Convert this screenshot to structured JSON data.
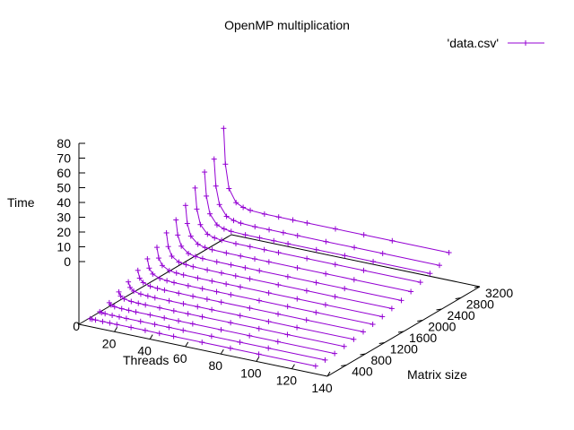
{
  "chart_data": {
    "type": "line",
    "title": "OpenMP multiplication",
    "xlabel": "Threads",
    "ylabel": "Matrix size",
    "zlabel": "Time",
    "xlim": [
      0,
      140
    ],
    "ylim": [
      0,
      3200
    ],
    "zlim": [
      0,
      80
    ],
    "x_ticks": [
      "20",
      "40",
      "60",
      "80",
      "100",
      "120",
      "140"
    ],
    "y_ticks": [
      "400",
      "800",
      "1200",
      "1600",
      "2000",
      "2400",
      "2800",
      "3200"
    ],
    "z_ticks": [
      "0",
      "10",
      "20",
      "30",
      "40",
      "50",
      "60",
      "70",
      "80"
    ],
    "origin_label": "0",
    "legend": {
      "label": "'data.csv'",
      "position": "top-right"
    },
    "x": [
      1,
      2,
      4,
      8,
      12,
      16,
      24,
      32,
      40,
      48,
      64,
      80,
      96,
      128
    ],
    "series": [
      {
        "y": 200,
        "values": [
          0.2,
          0.15,
          0.12,
          0.1,
          0.1,
          0.1,
          0.1,
          0.1,
          0.1,
          0.1,
          0.1,
          0.1,
          0.1,
          0.1
        ]
      },
      {
        "y": 400,
        "values": [
          1.2,
          0.8,
          0.6,
          0.5,
          0.45,
          0.4,
          0.4,
          0.4,
          0.4,
          0.4,
          0.4,
          0.4,
          0.4,
          0.4
        ]
      },
      {
        "y": 600,
        "values": [
          3.5,
          2.2,
          1.5,
          1.2,
          1.1,
          1.0,
          1.0,
          1.0,
          1.0,
          1.0,
          1.0,
          1.0,
          1.0,
          1.0
        ]
      },
      {
        "y": 800,
        "values": [
          7.0,
          4.5,
          3.0,
          2.3,
          2.1,
          2.0,
          2.0,
          2.0,
          2.0,
          2.0,
          2.0,
          2.0,
          2.0,
          2.0
        ]
      },
      {
        "y": 1000,
        "values": [
          10.0,
          6.5,
          4.5,
          3.5,
          3.2,
          3.0,
          3.0,
          3.0,
          3.0,
          3.0,
          3.0,
          3.0,
          3.0,
          3.0
        ]
      },
      {
        "y": 1200,
        "values": [
          14.0,
          9.0,
          6.5,
          5.0,
          4.6,
          4.4,
          4.3,
          4.3,
          4.3,
          4.3,
          4.3,
          4.3,
          4.3,
          4.3
        ]
      },
      {
        "y": 1400,
        "values": [
          18.0,
          12.0,
          8.5,
          6.5,
          6.0,
          5.7,
          5.6,
          5.6,
          5.6,
          5.6,
          5.6,
          5.6,
          5.6,
          5.6
        ]
      },
      {
        "y": 1600,
        "values": [
          22.0,
          15.0,
          10.5,
          8.0,
          7.4,
          7.1,
          7.0,
          7.0,
          7.0,
          7.0,
          7.0,
          7.0,
          7.0,
          7.0
        ]
      },
      {
        "y": 1800,
        "values": [
          28.0,
          19.0,
          13.0,
          10.0,
          9.3,
          8.9,
          8.7,
          8.7,
          8.7,
          8.7,
          8.7,
          8.7,
          8.7,
          8.7
        ]
      },
      {
        "y": 2000,
        "values": [
          33.0,
          23.0,
          16.0,
          12.0,
          11.0,
          10.6,
          10.4,
          10.4,
          10.4,
          10.4,
          10.4,
          10.4,
          10.4,
          10.4
        ]
      },
      {
        "y": 2200,
        "values": [
          39.0,
          27.0,
          19.0,
          14.5,
          13.3,
          12.8,
          12.6,
          12.6,
          12.6,
          12.6,
          12.6,
          12.6,
          12.6,
          12.6
        ]
      },
      {
        "y": 2400,
        "values": [
          47.0,
          33.0,
          23.0,
          17.5,
          16.0,
          15.4,
          15.1,
          15.1,
          15.1,
          15.1,
          15.1,
          15.1,
          15.1,
          15.1
        ]
      },
      {
        "y": 2600,
        "values": [
          54.0,
          38.0,
          26.5,
          20.0,
          18.3,
          17.6,
          17.3,
          17.3,
          17.3,
          17.3,
          17.3,
          17.3,
          17.3,
          17.3
        ]
      },
      {
        "y": 2800,
        "values": [
          59.0,
          41.0,
          29.0,
          22.0,
          20.2,
          19.4,
          19.0,
          19.0,
          19.0,
          19.0,
          19.0,
          19.0,
          19.0,
          19.0
        ]
      },
      {
        "y": 3000,
        "values": [
          76.0,
          52.0,
          36.0,
          27.5,
          25.3,
          24.3,
          23.8,
          23.8,
          23.8,
          23.8,
          23.8,
          23.8,
          23.8,
          23.8
        ]
      }
    ],
    "series_color": "#9400d3",
    "grid": false
  }
}
